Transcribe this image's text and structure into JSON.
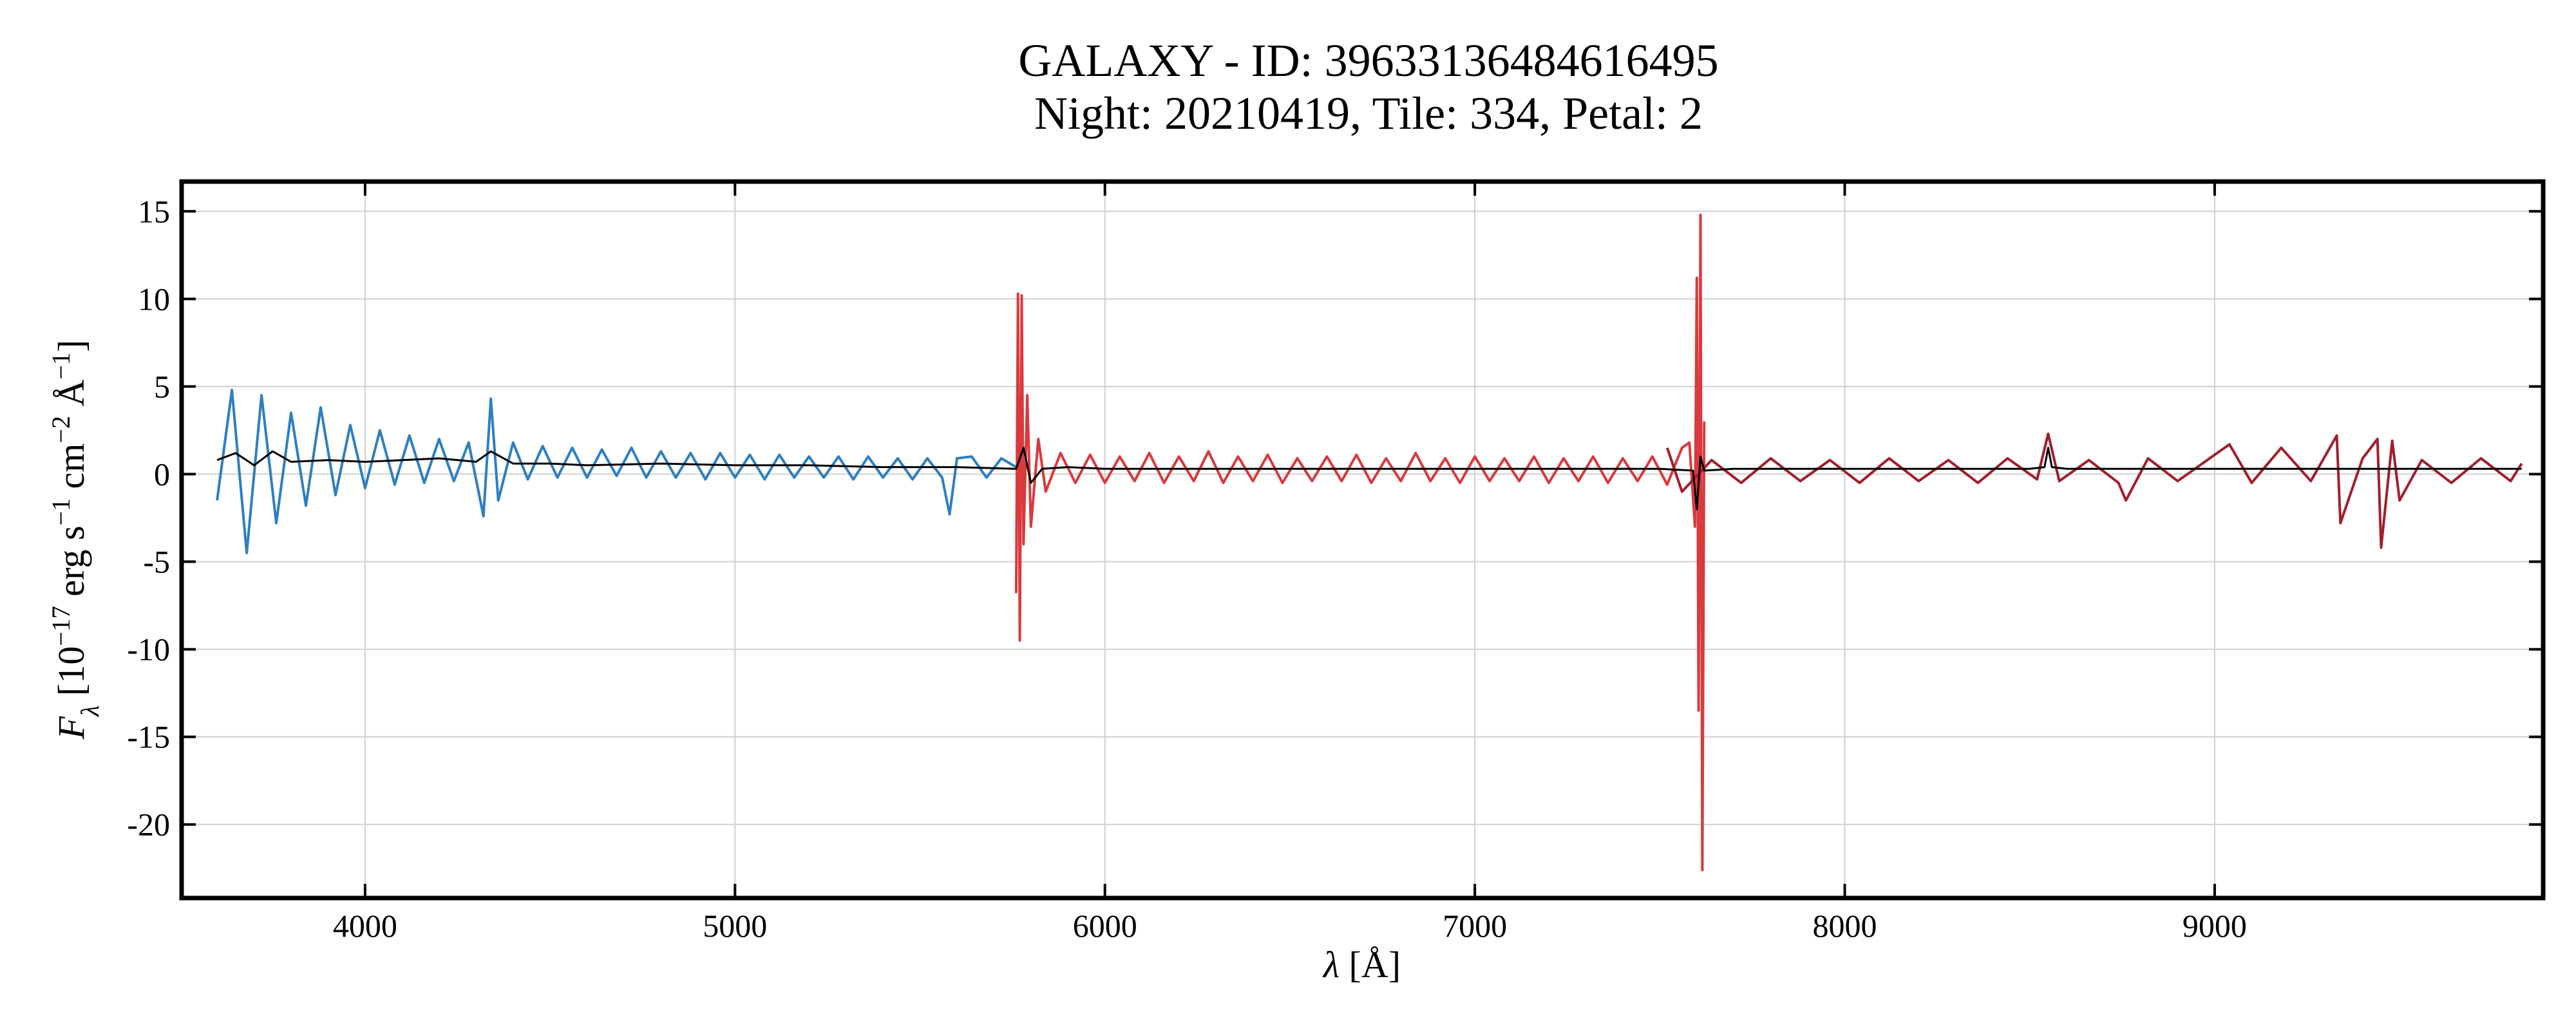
{
  "chart_data": {
    "type": "line",
    "title": [
      "GALAXY - ID: 39633136484616495",
      "Night: 20210419, Tile: 334, Petal: 2"
    ],
    "xlabel": [
      "λ",
      " [Å]"
    ],
    "ylabel": [
      "F",
      "λ",
      " [10",
      "−17",
      " erg s",
      "−1",
      " cm",
      "−2",
      " Å",
      "−1",
      "]"
    ],
    "xlim": [
      3504,
      9888
    ],
    "ylim": [
      -24.2,
      16.7
    ],
    "xticks": [
      4000,
      5000,
      6000,
      7000,
      8000,
      9000
    ],
    "yticks": [
      -20,
      -15,
      -10,
      -5,
      0,
      5,
      10,
      15
    ],
    "grid": true,
    "series": [
      {
        "color": "#2f7fc0",
        "x": [
          3600,
          3640,
          3680,
          3720,
          3760,
          3800,
          3840,
          3880,
          3920,
          3960,
          4000,
          4040,
          4080,
          4120,
          4160,
          4200,
          4240,
          4280,
          4320,
          4340,
          4360,
          4400,
          4440,
          4480,
          4520,
          4560,
          4600,
          4640,
          4680,
          4720,
          4760,
          4800,
          4840,
          4880,
          4920,
          4960,
          5000,
          5040,
          5080,
          5120,
          5160,
          5200,
          5240,
          5280,
          5320,
          5360,
          5400,
          5440,
          5480,
          5520,
          5560,
          5580,
          5600,
          5640,
          5680,
          5720,
          5760
        ],
        "values": [
          -1.5,
          4.8,
          -4.5,
          4.5,
          -2.8,
          3.5,
          -1.8,
          3.8,
          -1.2,
          2.8,
          -0.8,
          2.5,
          -0.6,
          2.2,
          -0.5,
          2.0,
          -0.4,
          1.8,
          -2.4,
          4.3,
          -1.5,
          1.8,
          -0.3,
          1.6,
          -0.2,
          1.5,
          -0.2,
          1.4,
          -0.1,
          1.5,
          -0.2,
          1.3,
          -0.2,
          1.2,
          -0.3,
          1.2,
          -0.2,
          1.1,
          -0.3,
          1.1,
          -0.2,
          1.0,
          -0.2,
          1.0,
          -0.3,
          1.0,
          -0.2,
          0.9,
          -0.3,
          0.9,
          -0.2,
          -2.3,
          0.9,
          1.0,
          -0.2,
          0.9,
          0.4
        ]
      },
      {
        "color": "#d93a3e",
        "x": [
          5760,
          5765,
          5770,
          5775,
          5780,
          5790,
          5800,
          5820,
          5840,
          5880,
          5920,
          5960,
          6000,
          6040,
          6080,
          6120,
          6160,
          6200,
          6240,
          6280,
          6320,
          6360,
          6400,
          6440,
          6480,
          6520,
          6560,
          6600,
          6640,
          6680,
          6720,
          6760,
          6800,
          6840,
          6880,
          6920,
          6960,
          7000,
          7040,
          7080,
          7120,
          7160,
          7200,
          7240,
          7280,
          7320,
          7360,
          7400,
          7440,
          7480,
          7520,
          7560,
          7580,
          7595,
          7600,
          7605,
          7610,
          7615,
          7620
        ],
        "values": [
          -6.8,
          10.3,
          -9.5,
          10.2,
          -4.0,
          4.5,
          -3.0,
          2.0,
          -1.0,
          1.2,
          -0.5,
          1.1,
          -0.5,
          1.0,
          -0.4,
          1.2,
          -0.5,
          1.0,
          -0.4,
          1.3,
          -0.5,
          1.0,
          -0.4,
          1.1,
          -0.5,
          0.9,
          -0.4,
          1.0,
          -0.4,
          1.1,
          -0.5,
          0.9,
          -0.4,
          1.2,
          -0.4,
          0.9,
          -0.5,
          1.0,
          -0.4,
          0.9,
          -0.4,
          1.0,
          -0.5,
          0.9,
          -0.4,
          1.0,
          -0.5,
          0.9,
          -0.4,
          1.0,
          -0.6,
          1.5,
          1.8,
          -3.0,
          11.2,
          -13.5,
          14.8,
          -22.6,
          3.0
        ]
      },
      {
        "color": "#a11f2c",
        "x": [
          7520,
          7560,
          7640,
          7720,
          7800,
          7880,
          7960,
          8040,
          8120,
          8200,
          8280,
          8360,
          8440,
          8520,
          8550,
          8580,
          8660,
          8740,
          8760,
          8820,
          8900,
          8980,
          9040,
          9100,
          9180,
          9260,
          9330,
          9340,
          9400,
          9440,
          9450,
          9480,
          9500,
          9560,
          9640,
          9720,
          9800,
          9830
        ],
        "values": [
          1.5,
          -1.0,
          0.8,
          -0.5,
          0.9,
          -0.4,
          0.8,
          -0.5,
          0.9,
          -0.4,
          0.8,
          -0.5,
          0.9,
          -0.3,
          2.3,
          -0.4,
          0.8,
          -0.5,
          -1.5,
          0.9,
          -0.4,
          0.8,
          1.7,
          -0.5,
          1.5,
          -0.4,
          2.2,
          -2.8,
          0.9,
          2.0,
          -4.2,
          1.9,
          -1.5,
          0.8,
          -0.5,
          0.9,
          -0.4,
          0.6
        ]
      },
      {
        "color": "#000000",
        "x": [
          3600,
          3650,
          3700,
          3750,
          3800,
          3900,
          4000,
          4100,
          4200,
          4300,
          4340,
          4400,
          4500,
          4600,
          4800,
          5000,
          5200,
          5400,
          5600,
          5760,
          5780,
          5800,
          5830,
          5900,
          6000,
          6500,
          7000,
          7500,
          7590,
          7600,
          7610,
          7620,
          7700,
          8000,
          8500,
          8540,
          8550,
          8560,
          8600,
          9000,
          9500,
          9830
        ],
        "values": [
          0.8,
          1.2,
          0.5,
          1.3,
          0.7,
          0.8,
          0.7,
          0.8,
          0.9,
          0.7,
          1.3,
          0.6,
          0.6,
          0.5,
          0.6,
          0.5,
          0.5,
          0.4,
          0.4,
          0.3,
          1.5,
          -0.5,
          0.3,
          0.4,
          0.3,
          0.3,
          0.3,
          0.3,
          0.2,
          -2.0,
          1.0,
          0.2,
          0.3,
          0.3,
          0.3,
          0.4,
          1.5,
          0.4,
          0.3,
          0.3,
          0.3,
          0.3
        ]
      }
    ]
  }
}
